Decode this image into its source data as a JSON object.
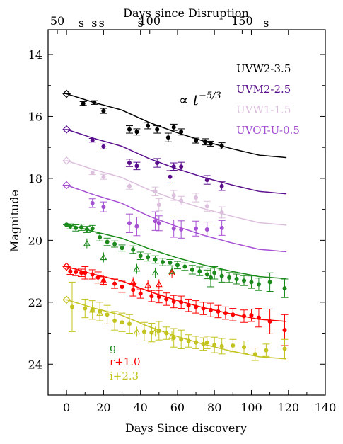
{
  "chart_data": {
    "type": "scatter",
    "title": "",
    "xlabel": "Days Since discovery",
    "ylabel": "Magnitude",
    "top_xlabel": "Days since Disruption",
    "xlim": [
      -10,
      140
    ],
    "ylim": [
      25,
      13.2
    ],
    "y_inverted": true,
    "x_ticks": [
      0,
      20,
      40,
      60,
      80,
      100,
      120,
      140
    ],
    "y_ticks": [
      14,
      16,
      18,
      20,
      22,
      24
    ],
    "top_ticks": [
      {
        "label": "50",
        "x": -5
      },
      {
        "label": "100",
        "x": 45
      },
      {
        "label": "150",
        "x": 95
      }
    ],
    "s_markers": [
      8,
      15,
      19,
      40,
      108
    ],
    "s_marker_label": "s",
    "annotation": {
      "base": "∝ t",
      "exponent": "−5/3"
    },
    "grid": false,
    "legend_position": "top-right",
    "series": [
      {
        "name": "UVW2-3.5",
        "band": "UVW2",
        "color": "#000000",
        "marker": "circle",
        "legend": true,
        "first": {
          "x": 0,
          "y": 15.27,
          "marker": "diamond"
        },
        "x": [
          9,
          15,
          20,
          34,
          38,
          44,
          49,
          55,
          58,
          62,
          70,
          75,
          78,
          84
        ],
        "y": [
          15.58,
          15.55,
          15.82,
          16.42,
          16.5,
          16.3,
          16.42,
          16.68,
          16.35,
          16.5,
          16.78,
          16.82,
          16.88,
          16.95
        ],
        "err": [
          0.06,
          0.06,
          0.08,
          0.12,
          0.1,
          0.1,
          0.12,
          0.14,
          0.1,
          0.1,
          0.08,
          0.1,
          0.08,
          0.1
        ],
        "model_mags": [
          15.27,
          15.55,
          15.79,
          16.19,
          16.52,
          16.8,
          17.04,
          17.25,
          17.33
        ],
        "model_end_day": 119
      },
      {
        "name": "UVM2-2.5",
        "band": "UVM2",
        "color": "#5b0f8c",
        "marker": "circle",
        "legend": true,
        "first": {
          "x": 0,
          "y": 16.42,
          "marker": "diamond"
        },
        "x": [
          14,
          20,
          34,
          38,
          49,
          56,
          58,
          62,
          76,
          84
        ],
        "y": [
          16.77,
          16.97,
          17.5,
          17.6,
          17.5,
          17.95,
          17.62,
          17.62,
          18.05,
          18.25
        ],
        "err": [
          0.06,
          0.08,
          0.12,
          0.12,
          0.14,
          0.2,
          0.12,
          0.14,
          0.14,
          0.14
        ],
        "model_mags": [
          16.42,
          16.71,
          16.96,
          17.36,
          17.69,
          17.97,
          18.21,
          18.42,
          18.5
        ],
        "model_end_day": 119
      },
      {
        "name": "UVW1-1.5",
        "band": "UVW1",
        "color": "#dcbfdc",
        "marker": "circle",
        "legend": true,
        "first": {
          "x": 0,
          "y": 17.43,
          "marker": "diamond"
        },
        "x": [
          14,
          20,
          34,
          48,
          50,
          58,
          62,
          70,
          76,
          84
        ],
        "y": [
          17.82,
          17.95,
          18.25,
          18.42,
          18.85,
          18.55,
          18.72,
          18.62,
          18.9,
          19.1
        ],
        "err": [
          0.06,
          0.08,
          0.1,
          0.14,
          0.2,
          0.16,
          0.14,
          0.14,
          0.16,
          0.18
        ],
        "model_mags": [
          17.43,
          17.72,
          17.97,
          18.37,
          18.7,
          18.98,
          19.22,
          19.43,
          19.51
        ],
        "model_end_day": 119
      },
      {
        "name": "UVOT-U-0.5",
        "band": "UVOT-U",
        "color": "#a550d2",
        "marker": "circle",
        "legend": true,
        "first": {
          "x": 0,
          "y": 18.22,
          "marker": "diamond"
        },
        "x": [
          14,
          20,
          34,
          38,
          48,
          50,
          58,
          62,
          70,
          76,
          84
        ],
        "y": [
          18.8,
          18.92,
          19.45,
          19.55,
          19.38,
          19.45,
          19.62,
          19.65,
          19.62,
          19.65,
          19.6
        ],
        "err": [
          0.14,
          0.16,
          0.3,
          0.3,
          0.3,
          0.24,
          0.28,
          0.28,
          0.24,
          0.24,
          0.24
        ],
        "model_mags": [
          18.22,
          18.53,
          18.8,
          19.22,
          19.55,
          19.84,
          20.08,
          20.29,
          20.37
        ],
        "model_end_day": 119
      },
      {
        "name": "g",
        "band": "g",
        "color": "#1a8a1a",
        "marker": "circle",
        "legend": false,
        "first": {
          "x": 0,
          "y": 19.5,
          "marker": "circle"
        },
        "x": [
          2,
          5,
          8,
          11,
          14,
          18,
          22,
          26,
          30,
          36,
          40,
          44,
          48,
          52,
          56,
          60,
          64,
          68,
          72,
          76,
          78,
          80,
          84,
          88,
          92,
          96,
          100,
          104,
          110,
          118
        ],
        "y": [
          19.55,
          19.6,
          19.58,
          19.65,
          19.62,
          19.9,
          20.05,
          20.12,
          20.25,
          20.3,
          20.5,
          20.55,
          20.62,
          20.7,
          20.72,
          20.8,
          20.85,
          20.95,
          21.0,
          21.1,
          21.2,
          21.05,
          21.15,
          21.2,
          21.25,
          21.3,
          21.35,
          21.42,
          21.35,
          21.55
        ],
        "err": [
          0.08,
          0.1,
          0.1,
          0.1,
          0.1,
          0.12,
          0.12,
          0.1,
          0.1,
          0.12,
          0.12,
          0.12,
          0.12,
          0.12,
          0.1,
          0.12,
          0.12,
          0.14,
          0.14,
          0.14,
          0.3,
          0.2,
          0.2,
          0.16,
          0.16,
          0.16,
          0.2,
          0.2,
          0.3,
          0.3
        ],
        "open_triangles": {
          "x": [
            11,
            20,
            38,
            48,
            57
          ],
          "y": [
            20.1,
            20.55,
            20.92,
            21.05,
            21.0
          ]
        },
        "model_mags": [
          19.47,
          19.72,
          19.93,
          20.27,
          20.56,
          20.8,
          21.0,
          21.17,
          21.24
        ],
        "model_end_day": 119
      },
      {
        "name": "r+1.0",
        "band": "r",
        "color": "#ff0000",
        "marker": "circle",
        "legend": false,
        "first": {
          "x": 0,
          "y": 20.85,
          "marker": "diamond"
        },
        "x": [
          2,
          5,
          8,
          10,
          14,
          17,
          20,
          26,
          30,
          36,
          40,
          46,
          50,
          54,
          58,
          62,
          66,
          70,
          74,
          78,
          82,
          86,
          90,
          96,
          100,
          104,
          110,
          118
        ],
        "y": [
          21.0,
          21.02,
          21.05,
          21.05,
          21.1,
          21.2,
          21.3,
          21.4,
          21.5,
          21.6,
          21.72,
          21.8,
          21.82,
          21.9,
          21.98,
          22.0,
          22.1,
          22.15,
          22.2,
          22.25,
          22.3,
          22.35,
          22.4,
          22.45,
          22.42,
          22.5,
          22.62,
          22.9
        ],
        "err": [
          0.1,
          0.12,
          0.12,
          0.2,
          0.15,
          0.18,
          0.12,
          0.15,
          0.18,
          0.2,
          0.15,
          0.18,
          0.2,
          0.2,
          0.2,
          0.2,
          0.2,
          0.2,
          0.2,
          0.22,
          0.2,
          0.2,
          0.2,
          0.2,
          0.2,
          0.3,
          0.4,
          0.5
        ],
        "open_triangles": {
          "x": [
            20,
            36,
            44,
            50,
            57
          ],
          "y": [
            21.3,
            21.35,
            21.45,
            21.42,
            21.05
          ]
        },
        "model_mags": [
          20.85,
          21.1,
          21.31,
          21.65,
          21.94,
          22.18,
          22.38,
          22.55,
          22.62
        ],
        "model_end_day": 119
      },
      {
        "name": "i+2.3",
        "band": "i",
        "color": "#c3c31f",
        "marker": "circle",
        "legend": false,
        "first": {
          "x": 0,
          "y": 21.92,
          "marker": "diamond"
        },
        "x": [
          3,
          10,
          14,
          18,
          22,
          26,
          30,
          34,
          42,
          46,
          50,
          54,
          58,
          62,
          66,
          70,
          74,
          76,
          80,
          84,
          90,
          96,
          102,
          108,
          118
        ],
        "y": [
          22.15,
          22.2,
          22.25,
          22.3,
          22.4,
          22.6,
          22.65,
          22.7,
          22.95,
          22.98,
          22.92,
          23.0,
          23.15,
          23.2,
          23.25,
          23.3,
          23.35,
          23.3,
          23.38,
          23.42,
          23.4,
          23.45,
          23.68,
          23.55,
          23.5
        ],
        "err": [
          0.8,
          0.3,
          0.3,
          0.3,
          0.3,
          0.3,
          0.3,
          0.3,
          0.3,
          0.3,
          0.3,
          0.2,
          0.3,
          0.3,
          0.2,
          0.2,
          0.2,
          0.2,
          0.25,
          0.25,
          0.2,
          0.2,
          0.2,
          0.2,
          0.3
        ],
        "open_triangles": {
          "x": [
            14,
            18,
            38,
            48,
            57
          ],
          "y": [
            22.25,
            22.35,
            22.95,
            22.95,
            23.1
          ]
        },
        "model_mags": [
          21.92,
          22.19,
          22.42,
          22.79,
          23.1,
          23.36,
          23.58,
          23.76,
          23.83
        ],
        "model_end_day": 119
      }
    ]
  }
}
